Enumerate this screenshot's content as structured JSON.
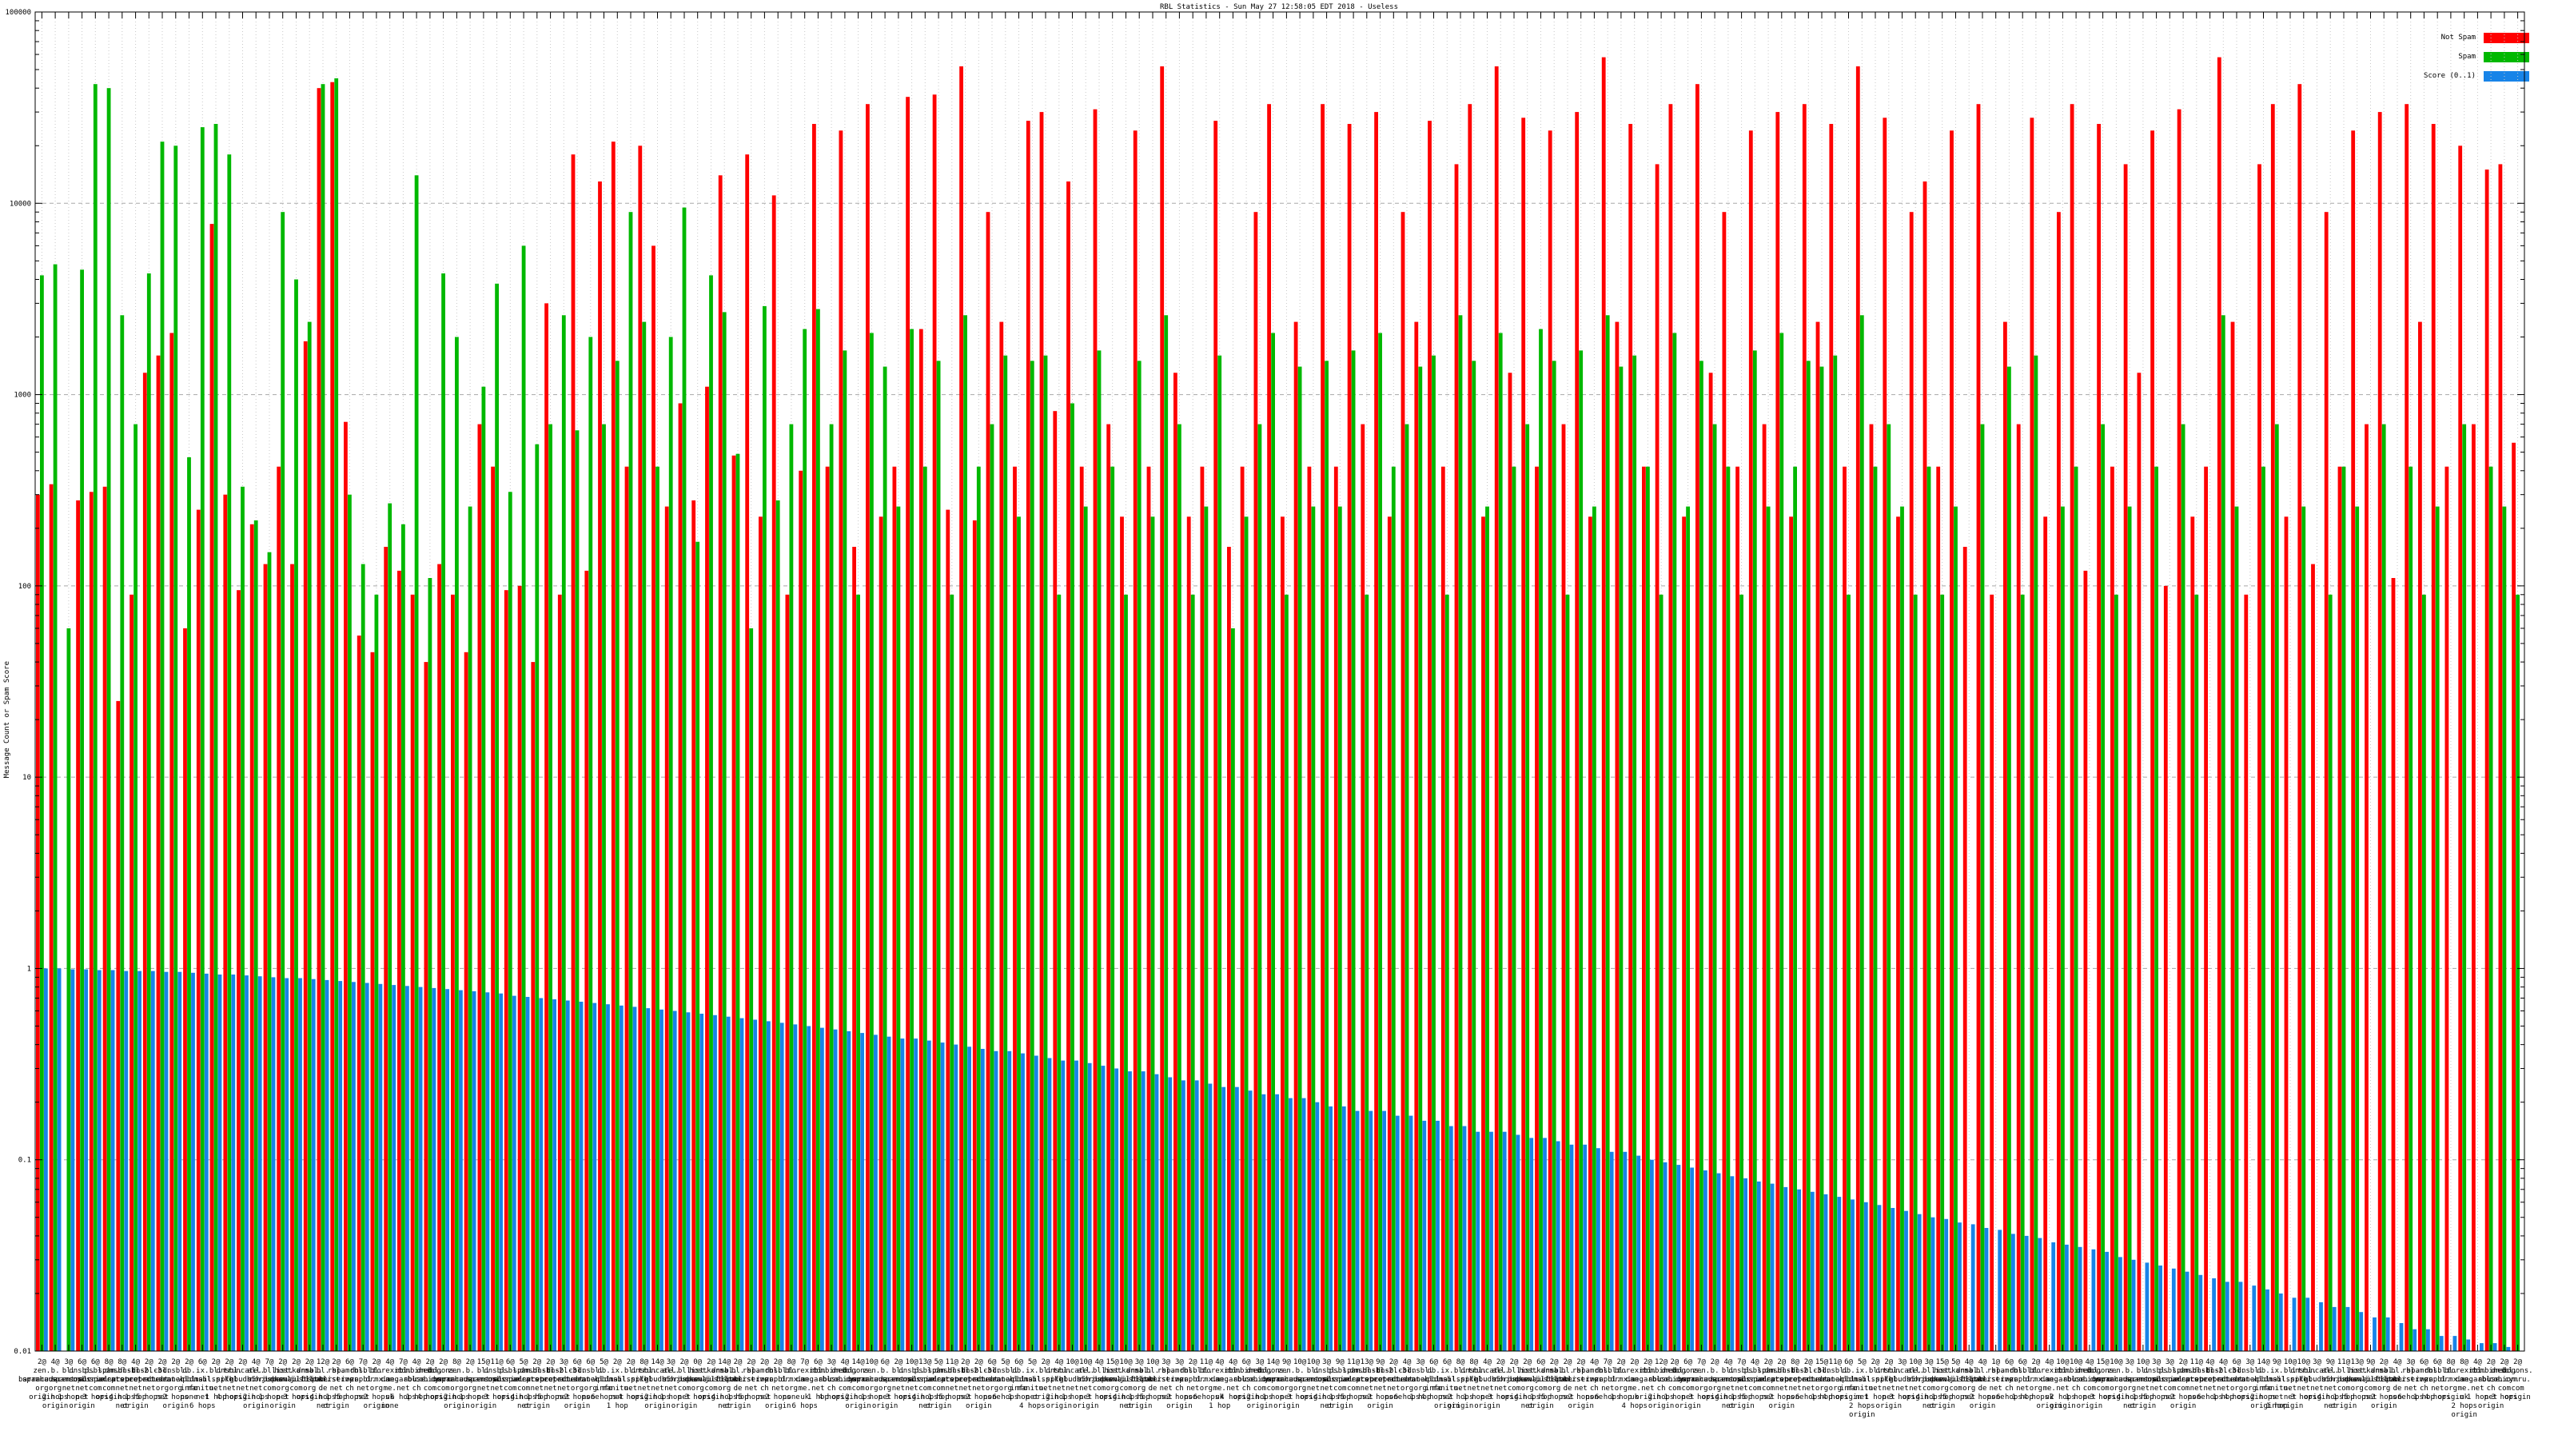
{
  "title": "RBL Statistics - Sun May 27 12:58:05 EDT 2018 - Useless",
  "y_axis": {
    "label": "Message Count or Spam Score",
    "scale": "log",
    "min": 0.01,
    "max": 100000,
    "ticks": [
      "100000",
      "10000",
      "1000",
      "100",
      "10",
      "1",
      "0.1",
      "0.01"
    ]
  },
  "legend": [
    {
      "label": "Not Spam",
      "color": "#ff0000"
    },
    {
      "label": "Spam",
      "color": "#00b800"
    },
    {
      "label": "Score (0..1)",
      "color": "#1884e8"
    }
  ],
  "colors": {
    "grid_dotted": "#c8c8c8",
    "grid_dashed": "#a8a8a8",
    "border": "#000000"
  },
  "chart_data": {
    "type": "bar",
    "groups": 186,
    "title": "RBL Statistics - Sun May 27 12:58:05 EDT 2018 - Useless",
    "xlabel": "",
    "ylabel": "Message Count or Spam Score",
    "ylim": [
      0.01,
      100000
    ],
    "grid": true,
    "legend_position": "top-right",
    "note_values_estimated_from_log_gridlines": true,
    "rbl_names": [
      "zen.spamhaus.org",
      "b.barracudacentral.org",
      "bl.spamcop.net",
      "dnsbl.sorbs.net",
      "psbl.surriel.com",
      "spam.spamrats.com",
      "dnsbl-1.uceprotect.net",
      "dnsbl-2.uceprotect.net",
      "dnsbl-3.uceprotect.net",
      "cbl.abuseat.org",
      "dnsbl.dronebl.org",
      "db.wpbl.info",
      "ix.dnsbl.manitu.net",
      "bl.mailspike.net",
      "dnsbl.spfbl.net",
      "truncate.gbudb.net",
      "all.s5h.net",
      "bl.nordspam.com",
      "list.dnswl.org",
      "hostkarma.junkemailfilter.com",
      "dnsbl.justspam.org",
      "bl.blocklist.de",
      "rbl.interserver.net",
      "spamrbl.imp.ch",
      "dnsbl.zapbl.net",
      "bl.drmx.org",
      "torexit.dan.me.uk",
      "rbl.megarbl.net",
      "combined.abuse.ch",
      "dnsbl.cobion.com",
      "bogons.cymru.com"
    ],
    "qualifier_pool": [
      "origin",
      "2 hops|origin",
      "1 hop",
      "net|origin",
      "3 hops",
      "origin",
      "4 hops|net",
      "1 hop|origin",
      "5 hops",
      "net",
      "2 hops|origin",
      "none",
      "6 hops",
      "1 hop",
      "4 hops"
    ],
    "counts": [
      2,
      4,
      3,
      6,
      6,
      8,
      8,
      4,
      2,
      2,
      2,
      2,
      6,
      2,
      2,
      2,
      4,
      7,
      2,
      2,
      2,
      12,
      2,
      6,
      7,
      2,
      4,
      7,
      4,
      2,
      2,
      8,
      2,
      15,
      11,
      6,
      5,
      2,
      2,
      3,
      6,
      6,
      5,
      2,
      2,
      8,
      14,
      3,
      2,
      0,
      2,
      14,
      2,
      2,
      2,
      2,
      8,
      7,
      6,
      3,
      4,
      14,
      10,
      6,
      2,
      10,
      13,
      5,
      11,
      2,
      2,
      6,
      5,
      6,
      5,
      2,
      4,
      10,
      10,
      4,
      15,
      10,
      3,
      10,
      3,
      3,
      2,
      11,
      4,
      4,
      6,
      3,
      14,
      9,
      10,
      10,
      3,
      9,
      11,
      13,
      9,
      2,
      4,
      3,
      6,
      6,
      8,
      8,
      4,
      2,
      2,
      2,
      6,
      2,
      2,
      2,
      4,
      7,
      2,
      2,
      2,
      12,
      2,
      6,
      7,
      2,
      4,
      7,
      4,
      2,
      2,
      8,
      2,
      15,
      11,
      6,
      5,
      2,
      2,
      3,
      10,
      3,
      15,
      5,
      4,
      4,
      1,
      6,
      6,
      2,
      4,
      10,
      10,
      4,
      15,
      10,
      3,
      10,
      3,
      3,
      2,
      11,
      4,
      4,
      6,
      3,
      14,
      9,
      10,
      10,
      3,
      9,
      11,
      13,
      9,
      2,
      4,
      3,
      6,
      6,
      8,
      8,
      4,
      2,
      2,
      2
    ],
    "series": [
      {
        "name": "Not Spam",
        "color": "#ff0000",
        "values": [
          300,
          340,
          0,
          280,
          310,
          330,
          25,
          90,
          1300,
          1600,
          2100,
          60,
          250,
          7800,
          300,
          95,
          210,
          130,
          420,
          130,
          1900,
          40000,
          43000,
          720,
          55,
          45,
          160,
          120,
          90,
          40,
          130,
          90,
          45,
          700,
          420,
          95,
          100,
          40,
          3000,
          90,
          18000,
          120,
          13000,
          21000,
          420,
          20000,
          6000,
          260,
          900,
          280,
          1100,
          14000,
          480,
          18000,
          230,
          11000,
          90,
          400,
          26000,
          420,
          24000,
          160,
          33000,
          230,
          420,
          36000,
          2200,
          37000,
          250,
          52000,
          220,
          9000,
          2400,
          420,
          27000,
          30000,
          820,
          13000,
          420,
          31000,
          700,
          230,
          24000,
          420,
          52000,
          1300,
          230,
          420,
          27000,
          160,
          420,
          9000,
          33000,
          230,
          2400,
          420,
          33000,
          420,
          26000,
          700,
          30000,
          230,
          9000,
          2400,
          27000,
          420,
          16000,
          33000,
          230,
          52000,
          1300,
          28000,
          420,
          24000,
          700,
          30000,
          230,
          58000,
          2400,
          26000,
          420,
          16000,
          33000,
          230,
          42000,
          1300,
          9000,
          420,
          24000,
          700,
          30000,
          230,
          33000,
          2400,
          26000,
          420,
          52000,
          700,
          28000,
          230,
          9000,
          13000,
          420,
          24000,
          160,
          33000,
          90,
          2400,
          700,
          28000,
          230,
          9000,
          33000,
          120,
          26000,
          420,
          16000,
          1300,
          24000,
          100,
          31000,
          230,
          420,
          58000,
          2400,
          90,
          16000,
          33000,
          230,
          42000,
          130,
          9000,
          420,
          24000,
          700,
          30000,
          110,
          33000,
          2400,
          26000,
          420,
          20000,
          700,
          15000,
          16000,
          560
        ]
      },
      {
        "name": "Spam",
        "color": "#00b800",
        "values": [
          4200,
          4800,
          60,
          4500,
          42000,
          40000,
          2600,
          700,
          4300,
          21000,
          20000,
          470,
          25000,
          26000,
          18000,
          330,
          220,
          150,
          9000,
          4000,
          2400,
          42000,
          45000,
          300,
          130,
          90,
          270,
          210,
          14000,
          110,
          4300,
          2000,
          260,
          1100,
          3800,
          310,
          6000,
          550,
          700,
          2600,
          650,
          2000,
          700,
          1500,
          9000,
          2400,
          420,
          2000,
          9500,
          170,
          4200,
          2700,
          490,
          60,
          2900,
          280,
          700,
          2200,
          2800,
          700,
          1700,
          90,
          2100,
          1400,
          260,
          2200,
          420,
          1500,
          90,
          2600,
          420,
          700,
          1600,
          230,
          1500,
          1600,
          90,
          900,
          260,
          1700,
          420,
          90,
          1500,
          230,
          2600,
          700,
          90,
          260,
          1600,
          60,
          230,
          700,
          2100,
          90,
          1400,
          260,
          1500,
          260,
          1700,
          90,
          2100,
          420,
          700,
          1400,
          1600,
          90,
          2600,
          1500,
          260,
          2100,
          420,
          700,
          2200,
          1500,
          90,
          1700,
          260,
          2600,
          1400,
          1600,
          420,
          90,
          2100,
          260,
          1500,
          700,
          420,
          90,
          1700,
          260,
          2100,
          420,
          1500,
          1400,
          1600,
          90,
          2600,
          420,
          700,
          260,
          90,
          420,
          90,
          260,
          0,
          700,
          0,
          1400,
          90,
          1600,
          0,
          260,
          420,
          0,
          700,
          90,
          260,
          0,
          420,
          0,
          700,
          90,
          0,
          2600,
          260,
          0,
          420,
          700,
          0,
          260,
          0,
          90,
          420,
          260,
          0,
          700,
          0,
          420,
          90,
          260,
          0,
          700,
          0,
          420,
          260,
          90
        ]
      },
      {
        "name": "Score (0..1)",
        "color": "#1884e8",
        "values": [
          1.0,
          1.0,
          0.99,
          0.99,
          0.98,
          0.98,
          0.97,
          0.97,
          0.97,
          0.96,
          0.96,
          0.95,
          0.94,
          0.93,
          0.93,
          0.92,
          0.91,
          0.9,
          0.89,
          0.89,
          0.88,
          0.87,
          0.86,
          0.85,
          0.84,
          0.83,
          0.82,
          0.81,
          0.8,
          0.79,
          0.78,
          0.77,
          0.76,
          0.75,
          0.74,
          0.72,
          0.71,
          0.7,
          0.69,
          0.68,
          0.67,
          0.66,
          0.65,
          0.64,
          0.63,
          0.62,
          0.61,
          0.6,
          0.59,
          0.58,
          0.57,
          0.56,
          0.55,
          0.54,
          0.53,
          0.52,
          0.51,
          0.5,
          0.49,
          0.48,
          0.47,
          0.46,
          0.45,
          0.44,
          0.43,
          0.43,
          0.42,
          0.41,
          0.4,
          0.39,
          0.38,
          0.37,
          0.37,
          0.36,
          0.35,
          0.34,
          0.33,
          0.33,
          0.32,
          0.31,
          0.3,
          0.29,
          0.29,
          0.28,
          0.27,
          0.26,
          0.26,
          0.25,
          0.24,
          0.24,
          0.23,
          0.22,
          0.22,
          0.21,
          0.21,
          0.2,
          0.19,
          0.19,
          0.18,
          0.18,
          0.18,
          0.17,
          0.17,
          0.16,
          0.16,
          0.15,
          0.15,
          0.14,
          0.14,
          0.14,
          0.135,
          0.13,
          0.13,
          0.125,
          0.12,
          0.12,
          0.115,
          0.11,
          0.11,
          0.105,
          0.1,
          0.097,
          0.094,
          0.091,
          0.088,
          0.085,
          0.082,
          0.08,
          0.077,
          0.075,
          0.072,
          0.07,
          0.068,
          0.066,
          0.064,
          0.062,
          0.06,
          0.058,
          0.056,
          0.054,
          0.052,
          0.05,
          0.049,
          0.047,
          0.046,
          0.044,
          0.043,
          0.041,
          0.04,
          0.039,
          0.037,
          0.036,
          0.035,
          0.034,
          0.033,
          0.031,
          0.03,
          0.029,
          0.028,
          0.027,
          0.026,
          0.025,
          0.024,
          0.023,
          0.023,
          0.022,
          0.021,
          0.02,
          0.019,
          0.019,
          0.018,
          0.017,
          0.017,
          0.016,
          0.015,
          0.015,
          0.014,
          0.013,
          0.013,
          0.012,
          0.012,
          0.0115,
          0.011,
          0.011,
          0.0105,
          0.01
        ]
      }
    ]
  }
}
